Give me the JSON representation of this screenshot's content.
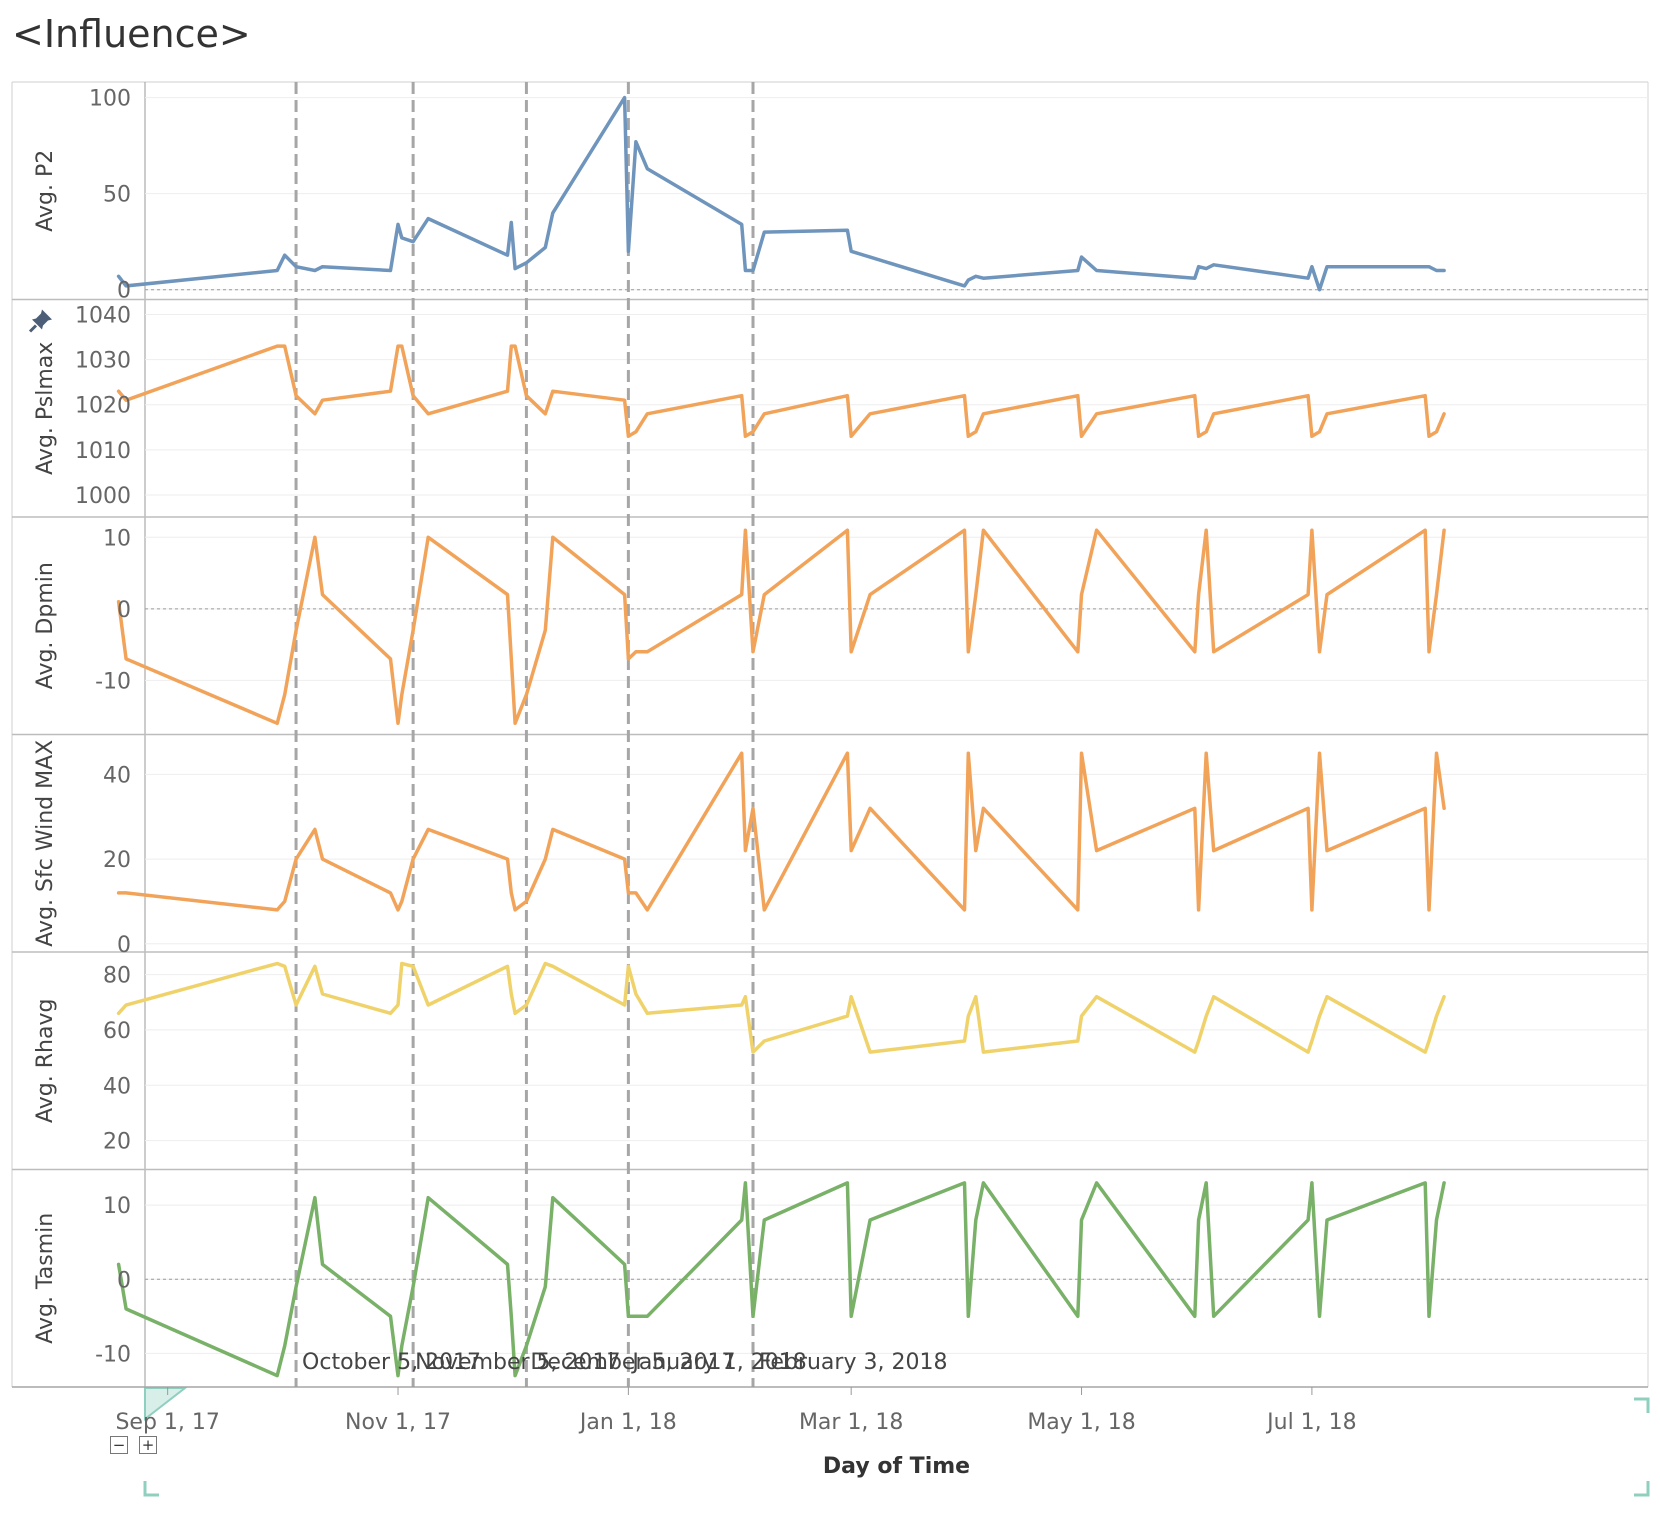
{
  "title": "<Influence>",
  "colors": {
    "blue": "#6f95bd",
    "orange": "#f2a35a",
    "yellow": "#f0d26a",
    "green": "#79b168",
    "refline": "#a6a6a6",
    "grid": "#eeeeee",
    "zero": "#999999"
  },
  "icons": {
    "pin": "pin-icon",
    "zoom_out": "minus-icon",
    "zoom_in": "plus-icon"
  },
  "chart_data": {
    "type": "line",
    "xlabel": "Day of Time",
    "xlim": [
      "2017-08-26",
      "2018-09-28"
    ],
    "x_ticks": [
      {
        "date": "2017-09-01",
        "label": "Sep 1, 17"
      },
      {
        "date": "2017-11-01",
        "label": "Nov 1, 17"
      },
      {
        "date": "2018-01-01",
        "label": "Jan 1, 18"
      },
      {
        "date": "2018-03-01",
        "label": "Mar 1, 18"
      },
      {
        "date": "2018-05-01",
        "label": "May 1, 18"
      },
      {
        "date": "2018-07-01",
        "label": "Jul 1, 18"
      }
    ],
    "reference_lines": [
      {
        "date": "2017-10-05",
        "label": "October 5, 2017"
      },
      {
        "date": "2017-11-05",
        "label": "November 5, 2017"
      },
      {
        "date": "2017-12-05",
        "label": "December 5, 2017"
      },
      {
        "date": "2018-01-01",
        "label": "January 1, 2018"
      },
      {
        "date": "2018-02-03",
        "label": "February 3, 2018"
      }
    ],
    "x": [
      "2017-08-19",
      "2017-08-21",
      "2017-09-30",
      "2017-10-02",
      "2017-10-05",
      "2017-10-10",
      "2017-10-12",
      "2017-10-30",
      "2017-11-01",
      "2017-11-02",
      "2017-11-05",
      "2017-11-09",
      "2017-11-30",
      "2017-12-01",
      "2017-12-02",
      "2017-12-05",
      "2017-12-10",
      "2017-12-12",
      "2017-12-31",
      "2018-01-01",
      "2018-01-03",
      "2018-01-06",
      "2018-01-31",
      "2018-02-01",
      "2018-02-03",
      "2018-02-06",
      "2018-02-28",
      "2018-03-01",
      "2018-03-06",
      "2018-03-31",
      "2018-04-01",
      "2018-04-03",
      "2018-04-05",
      "2018-04-30",
      "2018-05-01",
      "2018-05-05",
      "2018-05-31",
      "2018-06-01",
      "2018-06-03",
      "2018-06-05",
      "2018-06-30",
      "2018-07-01",
      "2018-07-03",
      "2018-07-05",
      "2018-07-31",
      "2018-08-01",
      "2018-08-03",
      "2018-08-05"
    ],
    "panels": [
      {
        "name": "Avg. P2",
        "color": "blue",
        "ylim": [
          -3,
          105
        ],
        "yticks": [
          0,
          50,
          100
        ],
        "zero_line": true,
        "pinned": false,
        "values": [
          7,
          2,
          10,
          18,
          12,
          10,
          12,
          10,
          34,
          27,
          25,
          37,
          18,
          35,
          11,
          14,
          22,
          40,
          100,
          20,
          77,
          63,
          34,
          10,
          10,
          30,
          31,
          20,
          17,
          2,
          5,
          7,
          6,
          10,
          17,
          10,
          6,
          12,
          11,
          13,
          6,
          12,
          0,
          12,
          12,
          12,
          10,
          10
        ]
      },
      {
        "name": "Avg. Pslmax",
        "color": "orange",
        "ylim": [
          996,
          1042
        ],
        "yticks": [
          1000,
          1010,
          1020,
          1030,
          1040
        ],
        "zero_line": false,
        "pinned": true,
        "values": [
          1023,
          1021,
          1033,
          1033,
          1022,
          1018,
          1021,
          1023,
          1033,
          1033,
          1022,
          1018,
          1023,
          1033,
          1033,
          1022,
          1018,
          1023,
          1021,
          1013,
          1014,
          1018,
          1022,
          1013,
          1014,
          1018,
          1022,
          1013,
          1018,
          1022,
          1013,
          1014,
          1018,
          1022,
          1013,
          1018,
          1022,
          1013,
          1014,
          1018,
          1022,
          1013,
          1014,
          1018,
          1022,
          1013,
          1014,
          1018
        ]
      },
      {
        "name": "Avg. Dpmin",
        "color": "orange",
        "ylim": [
          -17,
          12
        ],
        "yticks": [
          -10,
          0,
          10
        ],
        "zero_line": true,
        "pinned": false,
        "values": [
          1,
          -7,
          -16,
          -12,
          -3,
          10,
          2,
          -7,
          -16,
          -12,
          -3,
          10,
          2,
          -7,
          -16,
          -12,
          -3,
          10,
          2,
          -7,
          -6,
          -6,
          2,
          11,
          -6,
          2,
          11,
          -6,
          2,
          11,
          -6,
          2,
          11,
          -6,
          2,
          11,
          -6,
          2,
          11,
          -6,
          2,
          11,
          -6,
          2,
          11,
          -6,
          2,
          11
        ]
      },
      {
        "name": "Avg. Sfc Wind MAX",
        "color": "orange",
        "ylim": [
          -1,
          48
        ],
        "yticks": [
          0,
          20,
          40
        ],
        "zero_line": false,
        "pinned": false,
        "values": [
          12,
          12,
          8,
          10,
          20,
          27,
          20,
          12,
          8,
          10,
          20,
          27,
          20,
          12,
          8,
          10,
          20,
          27,
          20,
          12,
          12,
          8,
          45,
          22,
          32,
          8,
          45,
          22,
          32,
          8,
          45,
          22,
          32,
          8,
          45,
          22,
          32,
          8,
          45,
          22,
          32,
          8,
          45,
          22,
          32,
          8,
          45,
          32
        ]
      },
      {
        "name": "Avg. Rhavg",
        "color": "yellow",
        "ylim": [
          11,
          86
        ],
        "yticks": [
          20,
          40,
          60,
          80
        ],
        "zero_line": false,
        "pinned": false,
        "values": [
          66,
          69,
          84,
          83,
          69,
          83,
          73,
          66,
          69,
          84,
          83,
          69,
          83,
          73,
          66,
          69,
          84,
          83,
          69,
          83,
          73,
          66,
          69,
          72,
          52,
          56,
          65,
          72,
          52,
          56,
          65,
          72,
          52,
          56,
          65,
          72,
          52,
          56,
          65,
          72,
          52,
          56,
          65,
          72,
          52,
          56,
          65,
          72
        ]
      },
      {
        "name": "Avg. Tasmin",
        "color": "green",
        "ylim": [
          -14,
          14
        ],
        "yticks": [
          -10,
          0,
          10
        ],
        "zero_line": true,
        "pinned": false,
        "values": [
          2,
          -4,
          -13,
          -9,
          -1,
          11,
          2,
          -5,
          -13,
          -9,
          -1,
          11,
          2,
          -5,
          -13,
          -9,
          -1,
          11,
          2,
          -5,
          -5,
          -5,
          8,
          13,
          -5,
          8,
          13,
          -5,
          8,
          13,
          -5,
          8,
          13,
          -5,
          8,
          13,
          -5,
          8,
          13,
          -5,
          8,
          13,
          -5,
          8,
          13,
          -5,
          8,
          13
        ]
      }
    ]
  }
}
